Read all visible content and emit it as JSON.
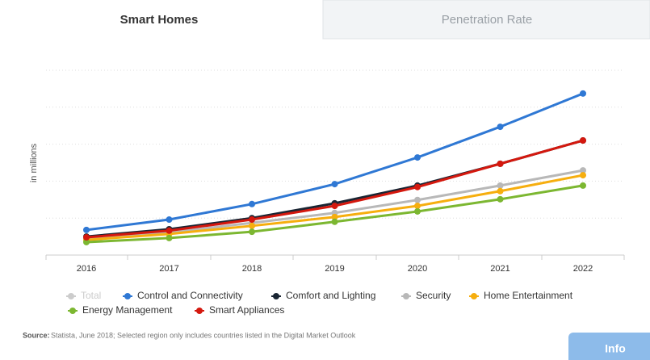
{
  "tabs": [
    "Smart Homes",
    "Penetration Rate"
  ],
  "info_button": "Info",
  "source_label": "Source:",
  "source_text": "Statista, June 2018; Selected region only includes countries listed in the Digital Market Outlook",
  "chart_data": {
    "type": "line",
    "y_label": "in millions",
    "categories": [
      "2016",
      "2017",
      "2018",
      "2019",
      "2020",
      "2021",
      "2022"
    ],
    "ylim": [
      0,
      5
    ],
    "grid_values": [
      1,
      2,
      3,
      4,
      5
    ],
    "grid": true,
    "legend_hidden": [
      {
        "name": "Total",
        "color": "#cccccc"
      }
    ],
    "series": [
      {
        "name": "Control and Connectivity",
        "color": "#2f78d4",
        "values": [
          0.68,
          0.96,
          1.38,
          1.92,
          2.64,
          3.47,
          4.37
        ]
      },
      {
        "name": "Comfort and Lighting",
        "color": "#1a2533",
        "values": [
          0.5,
          0.7,
          1.0,
          1.4,
          1.88,
          2.47,
          3.1
        ]
      },
      {
        "name": "Security",
        "color": "#b8b8b8",
        "values": [
          0.44,
          0.61,
          0.87,
          1.14,
          1.49,
          1.88,
          2.29
        ]
      },
      {
        "name": "Home Entertainment",
        "color": "#f6ae0e",
        "values": [
          0.41,
          0.57,
          0.79,
          1.03,
          1.33,
          1.73,
          2.16
        ]
      },
      {
        "name": "Energy Management",
        "color": "#7cb731",
        "values": [
          0.35,
          0.46,
          0.63,
          0.9,
          1.18,
          1.51,
          1.88
        ]
      },
      {
        "name": "Smart Appliances",
        "color": "#d4180e",
        "values": [
          0.48,
          0.66,
          0.96,
          1.33,
          1.84,
          2.47,
          3.1
        ]
      }
    ]
  }
}
